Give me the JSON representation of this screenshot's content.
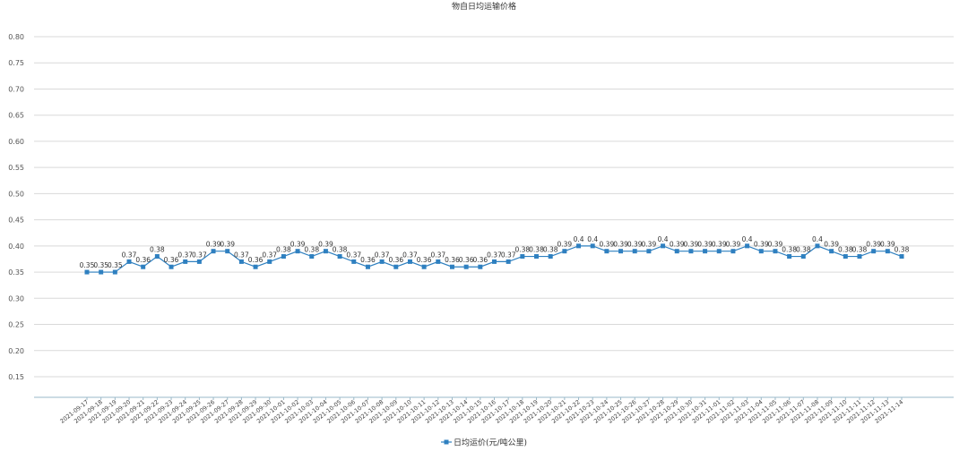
{
  "chart_data": {
    "type": "line",
    "title": "物自日均运输价格",
    "xlabel": "",
    "ylabel": "",
    "ylim": [
      0.1,
      0.8
    ],
    "yticks": [
      "0.80",
      "0.75",
      "0.70",
      "0.65",
      "0.60",
      "0.55",
      "0.50",
      "0.45",
      "0.40",
      "0.35",
      "0.30",
      "0.25",
      "0.20",
      "0.15"
    ],
    "grid": true,
    "legend_position": "bottom-center",
    "color": "#2f80c0",
    "categories": [
      "2021-09-17",
      "2021-09-18",
      "2021-09-19",
      "2021-09-20",
      "2021-09-21",
      "2021-09-22",
      "2021-09-23",
      "2021-09-24",
      "2021-09-25",
      "2021-09-26",
      "2021-09-27",
      "2021-09-28",
      "2021-09-29",
      "2021-09-30",
      "2021-10-01",
      "2021-10-02",
      "2021-10-03",
      "2021-10-04",
      "2021-10-05",
      "2021-10-06",
      "2021-10-07",
      "2021-10-08",
      "2021-10-09",
      "2021-10-10",
      "2021-10-11",
      "2021-10-12",
      "2021-10-13",
      "2021-10-14",
      "2021-10-15",
      "2021-10-16",
      "2021-10-17",
      "2021-10-18",
      "2021-10-19",
      "2021-10-20",
      "2021-10-21",
      "2021-10-22",
      "2021-10-23",
      "2021-10-24",
      "2021-10-25",
      "2021-10-26",
      "2021-10-27",
      "2021-10-28",
      "2021-10-29",
      "2021-10-30",
      "2021-10-31",
      "2021-11-01",
      "2021-11-02",
      "2021-11-03",
      "2021-11-04",
      "2021-11-05",
      "2021-11-06",
      "2021-11-07",
      "2021-11-08",
      "2021-11-09",
      "2021-11-10",
      "2021-11-11",
      "2021-11-12",
      "2021-11-13",
      "2021-11-14"
    ],
    "series": [
      {
        "name": "日均运价(元/吨公里)",
        "values": [
          0.35,
          0.35,
          0.35,
          0.37,
          0.36,
          0.38,
          0.36,
          0.37,
          0.37,
          0.39,
          0.39,
          0.37,
          0.36,
          0.37,
          0.38,
          0.39,
          0.38,
          0.39,
          0.38,
          0.37,
          0.36,
          0.37,
          0.36,
          0.37,
          0.36,
          0.37,
          0.36,
          0.36,
          0.36,
          0.37,
          0.37,
          0.38,
          0.38,
          0.38,
          0.39,
          0.4,
          0.4,
          0.39,
          0.39,
          0.39,
          0.39,
          0.4,
          0.39,
          0.39,
          0.39,
          0.39,
          0.39,
          0.4,
          0.39,
          0.39,
          0.38,
          0.38,
          0.4,
          0.39,
          0.38,
          0.38,
          0.39,
          0.39,
          0.38
        ],
        "labels": [
          "0.35",
          "0.35",
          "0.35",
          "0.37",
          "0.36",
          "0.38",
          "0.36",
          "0.37",
          "0.37",
          "0.39",
          "0.39",
          "0.37",
          "0.36",
          "0.37",
          "0.38",
          "0.39",
          "0.38",
          "0.39",
          "0.38",
          "0.37",
          "0.36",
          "0.37",
          "0.36",
          "0.37",
          "0.36",
          "0.37",
          "0.36",
          "0.36",
          "0.36",
          "0.37",
          "0.37",
          "0.38",
          "0.38",
          "0.38",
          "0.39",
          "0.4",
          "0.4",
          "0.39",
          "0.39",
          "0.39",
          "0.39",
          "0.4",
          "0.39",
          "0.39",
          "0.39",
          "0.39",
          "0.39",
          "0.4",
          "0.39",
          "0.39",
          "0.38",
          "0.38",
          "0.4",
          "0.39",
          "0.38",
          "0.38",
          "0.39",
          "0.39",
          "0.38"
        ]
      }
    ]
  }
}
